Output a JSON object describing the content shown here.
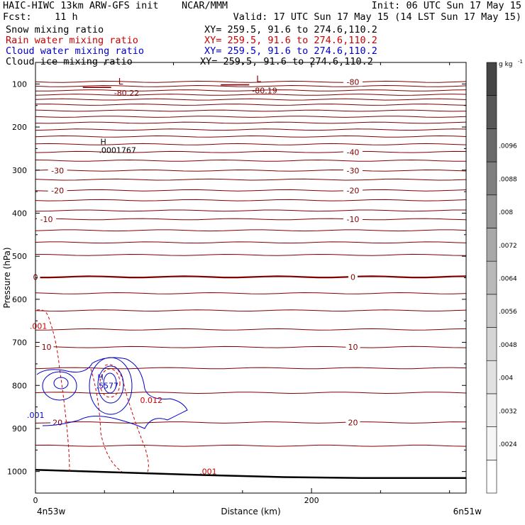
{
  "header": {
    "line1_left": "HAIC-HIWC 13km ARW-GFS init    NCAR/MMM",
    "line1_right": "Init: 06 UTC Sun 17 May 15",
    "line2_left": "Fcst:    11 h",
    "line2_right": "Valid: 17 UTC Sun 17 May 15 (14 LST Sun 17 May 15)",
    "fields": [
      {
        "name": "Snow mixing ratio",
        "xy": "XY= 259.5, 91.6 to 274.6,110.2",
        "color": "#000000"
      },
      {
        "name": "Rain water mixing ratio",
        "xy": "XY= 259.5, 91.6 to 274.6,110.2",
        "color": "#cc0000"
      },
      {
        "name": "Cloud water mixing ratio",
        "xy": "XY= 259.5, 91.6 to 274.6,110.2",
        "color": "#0000cc"
      },
      {
        "name": "Cloud ice mixing ratio",
        "xy": "XY= 259.5, 91.6 to 274.6,110.2",
        "color": "#000000"
      }
    ]
  },
  "chart_data": {
    "type": "contour",
    "xlabel": "Distance (km)",
    "ylabel": "Pressure (hPa)",
    "xlim": [
      0,
      312
    ],
    "ylim": [
      1050,
      50
    ],
    "xticks": [
      0,
      200
    ],
    "yticks": [
      100,
      200,
      300,
      400,
      500,
      600,
      700,
      800,
      900,
      1000
    ],
    "x_endpoints": {
      "left": "4n53w",
      "right": "6n51w"
    },
    "temperature_color": "#800000",
    "temperature_contours": [
      {
        "label": "-80",
        "p": 95,
        "label_x": 200
      },
      {
        "label": "-40",
        "p": 258,
        "label_x": 200
      },
      {
        "label": "-30",
        "p": 301,
        "label_x": -14
      },
      {
        "label": "-30",
        "p": 301,
        "label_x": 200
      },
      {
        "label": "-20",
        "p": 347,
        "label_x": -14
      },
      {
        "label": "-20",
        "p": 347,
        "label_x": 200
      },
      {
        "label": "-10",
        "p": 414,
        "label_x": -22
      },
      {
        "label": "-10",
        "p": 414,
        "label_x": 200
      },
      {
        "label": "0",
        "p": 548,
        "label_x": -30
      },
      {
        "label": "0",
        "p": 548,
        "label_x": 200
      },
      {
        "label": "10",
        "p": 711,
        "label_x": -22
      },
      {
        "label": "10",
        "p": 711,
        "label_x": 200
      },
      {
        "label": "20",
        "p": 886,
        "label_x": -14
      },
      {
        "label": "20",
        "p": 886,
        "label_x": 200
      }
    ],
    "temperature_unlabeled_p": [
      105,
      115,
      125,
      136,
      148,
      162,
      176,
      190,
      206,
      222,
      240,
      278,
      322,
      370,
      394,
      440,
      468,
      497,
      586,
      626,
      670,
      760,
      817,
      940
    ],
    "min_labels": [
      {
        "symbol": "L",
        "value": "-80.22",
        "x": 60,
        "p": 108
      },
      {
        "symbol": "L",
        "value": "-80.19",
        "x": 160,
        "p": 102
      }
    ],
    "max_labels": [
      {
        "symbol": "H",
        "value": ".0001767",
        "x": 47,
        "p": 250,
        "color": "#000000"
      },
      {
        "symbol": "H",
        "value": ".5577",
        "x": 45,
        "p": 797,
        "color": "#0000cc"
      }
    ],
    "field_labels": [
      {
        "text": ".001",
        "x": -28,
        "p": 662,
        "color": "#cc0000"
      },
      {
        "text": ".001",
        "x": -30,
        "p": 869,
        "color": "#0000cc"
      },
      {
        "text": "0.012",
        "x": 52,
        "p": 834,
        "color": "#cc0000"
      },
      {
        "text": ".001",
        "x": 95,
        "p": 1000,
        "color": "#cc0000"
      }
    ],
    "surface_pressure": [
      [
        0,
        996
      ],
      [
        60,
        1002
      ],
      [
        120,
        1008
      ],
      [
        180,
        1013
      ],
      [
        240,
        1015
      ],
      [
        312,
        1015
      ]
    ],
    "colorbar": {
      "unit": "g kg",
      "unit_exp": "-1",
      "levels": [
        ".0024",
        ".0032",
        ".004",
        ".0048",
        ".0056",
        ".0064",
        ".0072",
        ".008",
        ".0088",
        ".0096"
      ],
      "colors_bottom_to_top": [
        "#ffffff",
        "#f6f6f6",
        "#ececec",
        "#e1e1e1",
        "#d5d5d5",
        "#c8c8c8",
        "#b9b9b9",
        "#a8a8a8",
        "#959595",
        "#7f7f7f",
        "#6a6a6a",
        "#575757",
        "#454545"
      ]
    }
  }
}
